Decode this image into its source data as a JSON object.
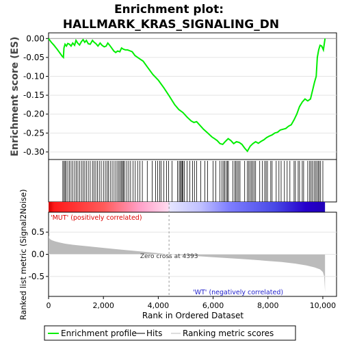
{
  "chart_data": {
    "type": "line",
    "title_line1": "Enrichment plot:",
    "title_line2": "HALLMARK_KRAS_SIGNALING_DN",
    "es_panel": {
      "ylabel": "Enrichment score (ES)",
      "ylim": [
        -0.32,
        0.015
      ],
      "yticks": [
        0.0,
        -0.05,
        -0.1,
        -0.15,
        -0.2,
        -0.25,
        -0.3
      ],
      "ytick_labels": [
        "0.00",
        "-0.05",
        "-0.10",
        "-0.15",
        "-0.20",
        "-0.25",
        "-0.30"
      ],
      "series_name": "Enrichment profile",
      "color": "#00ee00",
      "points": [
        [
          0,
          0.0
        ],
        [
          100,
          -0.01
        ],
        [
          200,
          -0.018
        ],
        [
          300,
          -0.027
        ],
        [
          400,
          -0.037
        ],
        [
          500,
          -0.047
        ],
        [
          540,
          -0.05
        ],
        [
          560,
          -0.025
        ],
        [
          600,
          -0.015
        ],
        [
          650,
          -0.02
        ],
        [
          700,
          -0.013
        ],
        [
          760,
          -0.015
        ],
        [
          820,
          -0.02
        ],
        [
          880,
          -0.012
        ],
        [
          950,
          -0.018
        ],
        [
          1000,
          -0.005
        ],
        [
          1060,
          -0.012
        ],
        [
          1130,
          -0.017
        ],
        [
          1200,
          -0.008
        ],
        [
          1260,
          -0.003
        ],
        [
          1320,
          -0.01
        ],
        [
          1380,
          -0.005
        ],
        [
          1450,
          -0.014
        ],
        [
          1520,
          -0.015
        ],
        [
          1600,
          -0.005
        ],
        [
          1660,
          -0.01
        ],
        [
          1720,
          -0.013
        ],
        [
          1800,
          -0.02
        ],
        [
          1880,
          -0.012
        ],
        [
          1950,
          -0.018
        ],
        [
          2030,
          -0.022
        ],
        [
          2100,
          -0.02
        ],
        [
          2160,
          -0.012
        ],
        [
          2230,
          -0.018
        ],
        [
          2300,
          -0.025
        ],
        [
          2380,
          -0.033
        ],
        [
          2450,
          -0.037
        ],
        [
          2520,
          -0.033
        ],
        [
          2600,
          -0.035
        ],
        [
          2660,
          -0.025
        ],
        [
          2720,
          -0.028
        ],
        [
          2800,
          -0.03
        ],
        [
          2880,
          -0.03
        ],
        [
          2950,
          -0.032
        ],
        [
          3050,
          -0.035
        ],
        [
          3150,
          -0.045
        ],
        [
          3250,
          -0.05
        ],
        [
          3350,
          -0.055
        ],
        [
          3450,
          -0.06
        ],
        [
          3600,
          -0.075
        ],
        [
          3800,
          -0.095
        ],
        [
          4000,
          -0.11
        ],
        [
          4200,
          -0.13
        ],
        [
          4400,
          -0.152
        ],
        [
          4600,
          -0.175
        ],
        [
          4750,
          -0.188
        ],
        [
          4900,
          -0.196
        ],
        [
          5050,
          -0.208
        ],
        [
          5200,
          -0.218
        ],
        [
          5300,
          -0.222
        ],
        [
          5400,
          -0.22
        ],
        [
          5500,
          -0.228
        ],
        [
          5650,
          -0.24
        ],
        [
          5800,
          -0.25
        ],
        [
          5950,
          -0.26
        ],
        [
          6050,
          -0.265
        ],
        [
          6150,
          -0.27
        ],
        [
          6250,
          -0.278
        ],
        [
          6350,
          -0.28
        ],
        [
          6450,
          -0.272
        ],
        [
          6550,
          -0.265
        ],
        [
          6650,
          -0.27
        ],
        [
          6750,
          -0.278
        ],
        [
          6850,
          -0.273
        ],
        [
          6950,
          -0.275
        ],
        [
          7050,
          -0.28
        ],
        [
          7150,
          -0.29
        ],
        [
          7250,
          -0.298
        ],
        [
          7350,
          -0.285
        ],
        [
          7450,
          -0.278
        ],
        [
          7550,
          -0.273
        ],
        [
          7650,
          -0.277
        ],
        [
          7750,
          -0.272
        ],
        [
          7850,
          -0.268
        ],
        [
          7950,
          -0.262
        ],
        [
          8050,
          -0.258
        ],
        [
          8150,
          -0.255
        ],
        [
          8250,
          -0.25
        ],
        [
          8350,
          -0.248
        ],
        [
          8450,
          -0.242
        ],
        [
          8550,
          -0.24
        ],
        [
          8650,
          -0.238
        ],
        [
          8750,
          -0.232
        ],
        [
          8850,
          -0.228
        ],
        [
          8950,
          -0.215
        ],
        [
          9050,
          -0.2
        ],
        [
          9150,
          -0.18
        ],
        [
          9250,
          -0.168
        ],
        [
          9350,
          -0.16
        ],
        [
          9450,
          -0.165
        ],
        [
          9550,
          -0.16
        ],
        [
          9650,
          -0.13
        ],
        [
          9700,
          -0.115
        ],
        [
          9760,
          -0.1
        ],
        [
          9800,
          -0.05
        ],
        [
          9850,
          -0.03
        ],
        [
          9900,
          -0.018
        ],
        [
          9960,
          -0.02
        ],
        [
          10020,
          -0.03
        ],
        [
          10060,
          -0.01
        ],
        [
          10080,
          0.0
        ]
      ]
    },
    "hits_panel": {
      "series_name": "Hits",
      "hit_positions": [
        520,
        560,
        600,
        640,
        700,
        760,
        820,
        880,
        950,
        1010,
        1070,
        1130,
        1200,
        1260,
        1320,
        1380,
        1450,
        1520,
        1600,
        1660,
        1720,
        1780,
        1850,
        1920,
        2000,
        2070,
        2130,
        2180,
        2250,
        2320,
        2390,
        2460,
        2520,
        2570,
        2620,
        2660,
        2700,
        2730,
        2780,
        2850,
        2920,
        2990,
        3080,
        3160,
        3250,
        3330,
        3420,
        3600,
        3780,
        3900,
        3980,
        4050,
        4100,
        4200,
        4300,
        4380,
        4500,
        4700,
        4760,
        4800,
        4840,
        4870,
        4900,
        4950,
        5050,
        5150,
        5250,
        5320,
        5400,
        5550,
        5700,
        5800,
        6000,
        6100,
        6250,
        6320,
        6380,
        6420,
        6480,
        6520,
        6560,
        6720,
        6790,
        6830,
        6880,
        6930,
        6980,
        7150,
        7250,
        7300,
        7350,
        7400,
        7450,
        7500,
        7550,
        7700,
        7800,
        7880,
        7930,
        7980,
        8100,
        8150,
        8300,
        8400,
        8480,
        8600,
        8700,
        8800,
        8950,
        9000,
        9100,
        9150,
        9250,
        9300,
        9450,
        9520,
        9570,
        9620,
        9680,
        9730,
        9780,
        9830,
        9870,
        9920,
        10000
      ]
    },
    "colorbar": {
      "n_total": 10080,
      "zero_cross": 4393
    },
    "metric_panel": {
      "ylabel": "Ranked list metric (Signal2Noise)",
      "ylim": [
        -0.95,
        0.95
      ],
      "yticks": [
        0.5,
        0.0,
        -0.5
      ],
      "ytick_labels": [
        "0.5",
        "0.0",
        "-0.5"
      ],
      "series_name": "Ranking metric scores",
      "color": "#bbbbbb",
      "points": [
        [
          0,
          0.42
        ],
        [
          30,
          0.36
        ],
        [
          80,
          0.33
        ],
        [
          150,
          0.31
        ],
        [
          250,
          0.29
        ],
        [
          400,
          0.265
        ],
        [
          600,
          0.24
        ],
        [
          900,
          0.215
        ],
        [
          1200,
          0.195
        ],
        [
          1600,
          0.17
        ],
        [
          2000,
          0.145
        ],
        [
          2500,
          0.115
        ],
        [
          3000,
          0.085
        ],
        [
          3500,
          0.055
        ],
        [
          4000,
          0.025
        ],
        [
          4393,
          0.0
        ],
        [
          4800,
          -0.02
        ],
        [
          5500,
          -0.045
        ],
        [
          6000,
          -0.065
        ],
        [
          6500,
          -0.085
        ],
        [
          7000,
          -0.105
        ],
        [
          7500,
          -0.125
        ],
        [
          8000,
          -0.15
        ],
        [
          8500,
          -0.175
        ],
        [
          9000,
          -0.21
        ],
        [
          9400,
          -0.25
        ],
        [
          9700,
          -0.295
        ],
        [
          9900,
          -0.34
        ],
        [
          10000,
          -0.4
        ],
        [
          10050,
          -0.5
        ],
        [
          10080,
          -0.85
        ]
      ],
      "zero_cross_label": "Zero cross at 4393",
      "pos_label": "'MUT' (positively correlated)",
      "neg_label": "'WT' (negatively correlated)"
    },
    "xaxis": {
      "xlabel": "Rank in Ordered Dataset",
      "xlim": [
        0,
        10500
      ],
      "xticks": [
        0,
        2000,
        4000,
        6000,
        8000,
        10000
      ],
      "xtick_labels": [
        "0",
        "2,000",
        "4,000",
        "6,000",
        "8,000",
        "10,000"
      ]
    },
    "legend": {
      "placement": "bottom",
      "entries": [
        "Enrichment profile",
        "Hits",
        "Ranking metric scores"
      ]
    }
  }
}
